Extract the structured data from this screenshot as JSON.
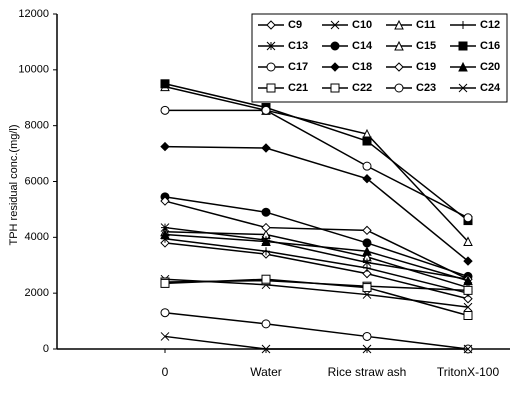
{
  "chart_data": {
    "type": "line",
    "y_label": "TPH residual conc.(mg/l)",
    "categories": [
      "0",
      "Water",
      "Rice straw ash",
      "TritonX-100"
    ],
    "ylim": [
      0,
      12000
    ],
    "yticks": [
      0,
      2000,
      4000,
      6000,
      8000,
      10000,
      12000
    ],
    "legend": "upper right",
    "series": [
      {
        "name": "C9",
        "color": "#000",
        "marker": "diamond-open",
        "values": [
          3800,
          3400,
          2700,
          1800
        ]
      },
      {
        "name": "C10",
        "color": "#000",
        "marker": "x",
        "values": [
          2500,
          2300,
          1950,
          1500
        ]
      },
      {
        "name": "C11",
        "color": "#000",
        "marker": "triangle-open",
        "values": [
          4200,
          4100,
          3300,
          2200
        ]
      },
      {
        "name": "C12",
        "color": "#000",
        "marker": "plus",
        "values": [
          3950,
          3500,
          2900,
          2000
        ]
      },
      {
        "name": "C13",
        "color": "#000",
        "marker": "asterisk",
        "values": [
          4350,
          3900,
          3100,
          2500
        ]
      },
      {
        "name": "C14",
        "color": "#000",
        "marker": "circle-filled",
        "values": [
          5450,
          4900,
          3800,
          2600
        ]
      },
      {
        "name": "C15",
        "color": "#000",
        "marker": "triangle-open",
        "values": [
          9400,
          8550,
          7700,
          3850
        ]
      },
      {
        "name": "C16",
        "color": "#000",
        "marker": "square-filled",
        "values": [
          9500,
          8650,
          7450,
          4600
        ]
      },
      {
        "name": "C17",
        "color": "#000",
        "marker": "circle-open",
        "values": [
          8550,
          8550,
          6550,
          4700
        ]
      },
      {
        "name": "C18",
        "color": "#000",
        "marker": "diamond-filled",
        "values": [
          7250,
          7200,
          6100,
          3150
        ]
      },
      {
        "name": "C19",
        "color": "#000",
        "marker": "diamond-open",
        "values": [
          5300,
          4350,
          4250,
          2500
        ]
      },
      {
        "name": "C20",
        "color": "#000",
        "marker": "triangle-filled",
        "values": [
          4100,
          3850,
          3500,
          2450
        ]
      },
      {
        "name": "C21",
        "color": "#000",
        "marker": "square-open",
        "values": [
          2400,
          2450,
          2250,
          2100
        ]
      },
      {
        "name": "C22",
        "color": "#000",
        "marker": "square-open",
        "values": [
          2350,
          2500,
          2200,
          1200
        ]
      },
      {
        "name": "C23",
        "color": "#000",
        "marker": "circle-open",
        "values": [
          1300,
          900,
          450,
          0
        ]
      },
      {
        "name": "C24",
        "color": "#000",
        "marker": "x",
        "values": [
          450,
          0,
          0,
          0
        ]
      }
    ]
  }
}
